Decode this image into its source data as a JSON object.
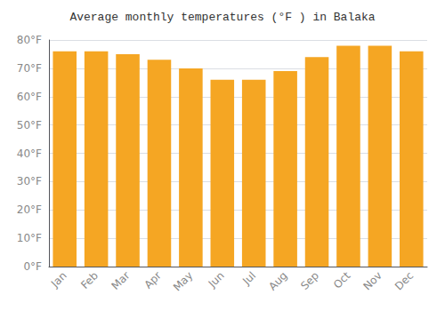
{
  "chart_data": {
    "type": "bar",
    "title": "Average monthly temperatures (°F ) in Balaka",
    "categories": [
      "Jan",
      "Feb",
      "Mar",
      "Apr",
      "May",
      "Jun",
      "Jul",
      "Aug",
      "Sep",
      "Oct",
      "Nov",
      "Dec"
    ],
    "values": [
      76,
      76,
      75,
      73,
      70,
      66,
      66,
      69,
      74,
      78,
      78,
      76
    ],
    "color": "#F5A623",
    "ylim": [
      0,
      80
    ],
    "yticks": [
      {
        "value": 0,
        "label": "0°F"
      },
      {
        "value": 10,
        "label": "10°F"
      },
      {
        "value": 20,
        "label": "20°F"
      },
      {
        "value": 30,
        "label": "30°F"
      },
      {
        "value": 40,
        "label": "40°F"
      },
      {
        "value": 50,
        "label": "50°F"
      },
      {
        "value": 60,
        "label": "60°F"
      },
      {
        "value": 70,
        "label": "70°F"
      },
      {
        "value": 80,
        "label": "80°F"
      }
    ],
    "grid": true
  }
}
